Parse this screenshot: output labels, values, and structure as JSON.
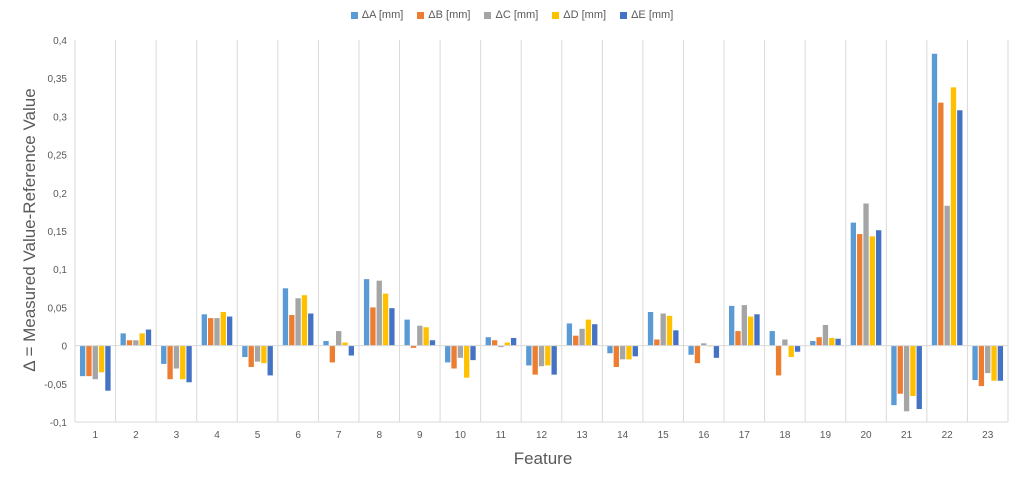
{
  "chart_data": {
    "type": "bar",
    "title": "",
    "xlabel": "Feature",
    "ylabel": "Δ = Measured Value-Reference Value",
    "ylim": [
      -0.1,
      0.4
    ],
    "y_ticks": [
      "-0,1",
      "-0,05",
      "0",
      "0,05",
      "0,1",
      "0,15",
      "0,2",
      "0,25",
      "0,3",
      "0,35",
      "0,4"
    ],
    "y_tick_values": [
      -0.1,
      -0.05,
      0,
      0.05,
      0.1,
      0.15,
      0.2,
      0.25,
      0.3,
      0.35,
      0.4
    ],
    "grid": "vertical category separators",
    "legend_position": "top-center",
    "categories": [
      "1",
      "2",
      "3",
      "4",
      "5",
      "6",
      "7",
      "8",
      "9",
      "10",
      "11",
      "12",
      "13",
      "14",
      "15",
      "16",
      "17",
      "18",
      "19",
      "20",
      "21",
      "22",
      "23"
    ],
    "series": [
      {
        "name": "ΔA [mm]",
        "color": "#5B9BD5",
        "values": [
          -0.04,
          0.016,
          -0.024,
          0.041,
          -0.015,
          0.075,
          0.006,
          0.087,
          0.034,
          -0.022,
          0.011,
          -0.026,
          0.029,
          -0.01,
          0.044,
          -0.012,
          0.052,
          0.019,
          0.006,
          0.161,
          -0.078,
          0.382,
          -0.045
        ]
      },
      {
        "name": "ΔB [mm]",
        "color": "#ED7D31",
        "values": [
          -0.04,
          0.007,
          -0.044,
          0.036,
          -0.028,
          0.04,
          -0.022,
          0.05,
          -0.003,
          -0.03,
          0.007,
          -0.038,
          0.013,
          -0.028,
          0.008,
          -0.023,
          0.019,
          -0.039,
          0.011,
          0.146,
          -0.063,
          0.318,
          -0.053
        ]
      },
      {
        "name": "ΔC [mm]",
        "color": "#A5A5A5",
        "values": [
          -0.044,
          0.007,
          -0.03,
          0.036,
          -0.021,
          0.062,
          0.019,
          0.085,
          0.026,
          -0.016,
          -0.002,
          -0.027,
          0.022,
          -0.018,
          0.042,
          0.003,
          0.053,
          0.008,
          0.027,
          0.186,
          -0.086,
          0.183,
          -0.036
        ]
      },
      {
        "name": "ΔD [mm]",
        "color": "#FFC000",
        "values": [
          -0.035,
          0.016,
          -0.044,
          0.044,
          -0.023,
          0.066,
          0.004,
          0.068,
          0.024,
          -0.042,
          0.004,
          -0.026,
          0.034,
          -0.018,
          0.039,
          -0.001,
          0.038,
          -0.015,
          0.01,
          0.143,
          -0.066,
          0.338,
          -0.046
        ]
      },
      {
        "name": "ΔE [mm]",
        "color": "#4472C4",
        "values": [
          -0.059,
          0.021,
          -0.048,
          0.038,
          -0.039,
          0.042,
          -0.013,
          0.049,
          0.007,
          -0.019,
          0.01,
          -0.038,
          0.028,
          -0.014,
          0.02,
          -0.016,
          0.041,
          -0.008,
          0.009,
          0.151,
          -0.083,
          0.308,
          -0.046
        ]
      }
    ]
  }
}
